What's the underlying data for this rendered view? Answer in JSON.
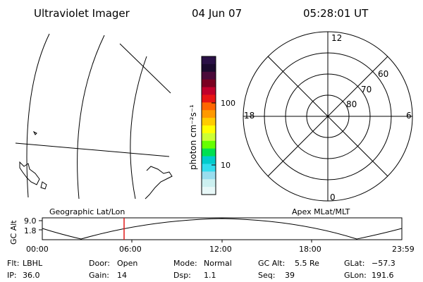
{
  "header": {
    "instrument": "Ultraviolet Imager",
    "date": "04 Jun 07",
    "time": "05:28:01 UT"
  },
  "colorbar": {
    "unit_label": "photon cm⁻²s⁻¹",
    "ticks": [
      "100",
      "10"
    ],
    "colors": [
      "#2a1046",
      "#1a0a2e",
      "#4a0a3a",
      "#7a0020",
      "#c0002a",
      "#e81414",
      "#ff6600",
      "#ff9900",
      "#ffcc00",
      "#ffff00",
      "#ccff33",
      "#66ff00",
      "#00e050",
      "#00cccc",
      "#33ddee",
      "#99ddee",
      "#ccf0f0",
      "#e8f8f8"
    ],
    "scale": "log"
  },
  "geo_map": {
    "label": "Geographic Lat/Lon"
  },
  "polar_plot": {
    "label": "Apex MLat/MLT",
    "mlt_labels": {
      "top": "12",
      "left": "18",
      "right": "6",
      "bottom": "0"
    },
    "lat_labels": [
      "60",
      "70",
      "80"
    ]
  },
  "altitude_plot": {
    "ylabel": "GC Alt",
    "yticks": [
      "9.0",
      "1.8"
    ],
    "xticks": [
      "00:00",
      "06:00",
      "12:00",
      "18:00",
      "23:59"
    ],
    "marker_time": "05:28",
    "marker_color": "#e01818"
  },
  "status": {
    "row1": [
      {
        "label": "Flt:",
        "value": "LBHL"
      },
      {
        "label": "Door:",
        "value": "Open"
      },
      {
        "label": "Mode:",
        "value": "Normal"
      },
      {
        "label": "GC Alt:",
        "value": "5.5 Re"
      },
      {
        "label": "GLat:",
        "value": "−57.3"
      }
    ],
    "row2": [
      {
        "label": "IP:",
        "value": "36.0"
      },
      {
        "label": "Gain:",
        "value": "14"
      },
      {
        "label": "Dsp:",
        "value": "1.1"
      },
      {
        "label": "Seq:",
        "value": "39"
      },
      {
        "label": "GLon:",
        "value": "191.6"
      }
    ]
  }
}
